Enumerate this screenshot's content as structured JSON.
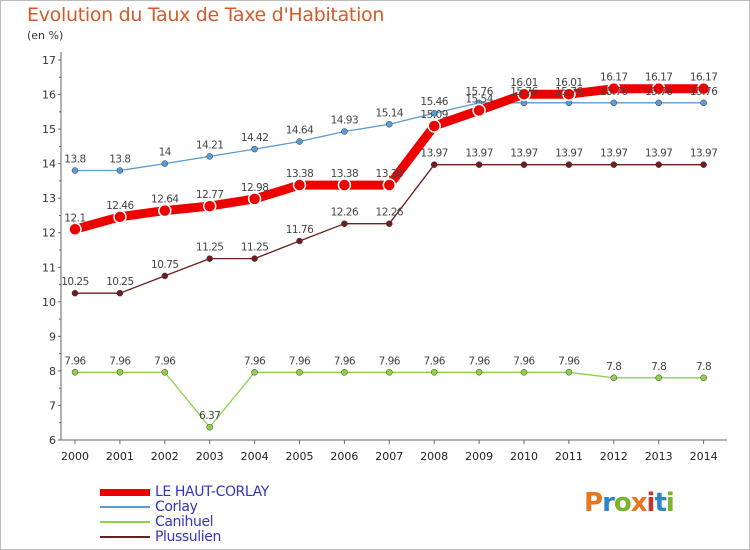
{
  "title": "Evolution du Taux de Taxe d'Habitation",
  "unit_label": "(en %)",
  "logo_text": "Proxiti",
  "logo_colors": [
    "#e8761e",
    "#2e86c8",
    "#7ab32e",
    "#e8761e",
    "#c0392b",
    "#2e86c8",
    "#7ab32e"
  ],
  "chart_data": {
    "type": "line",
    "x": [
      "2000",
      "2001",
      "2002",
      "2003",
      "2004",
      "2005",
      "2006",
      "2007",
      "2008",
      "2009",
      "2010",
      "2011",
      "2012",
      "2013",
      "2014"
    ],
    "ylim": [
      6,
      17
    ],
    "yticks": [
      "6",
      "7",
      "8",
      "9",
      "10",
      "11",
      "12",
      "13",
      "14",
      "15",
      "16",
      "17"
    ],
    "grid": false,
    "legend_placement": "bottom-left",
    "series": [
      {
        "name": "LE HAUT-CORLAY",
        "color": "#ee0000",
        "values": [
          12.1,
          12.46,
          12.64,
          12.77,
          12.98,
          13.38,
          13.38,
          13.38,
          15.09,
          15.54,
          16.01,
          16.01,
          16.17,
          16.17,
          16.17
        ],
        "labels": [
          "12.1",
          "12.46",
          "12.64",
          "12.77",
          "12.98",
          "13.38",
          "13.38",
          "13.38",
          "15.09",
          "15.54",
          "16.01",
          "16.01",
          "16.17",
          "16.17",
          "16.17"
        ]
      },
      {
        "name": "Corlay",
        "color": "#5b9bd5",
        "values": [
          13.8,
          13.8,
          14,
          14.21,
          14.42,
          14.64,
          14.93,
          15.14,
          15.46,
          15.76,
          15.76,
          15.76,
          15.76,
          15.76,
          15.76
        ],
        "labels": [
          "13.8",
          "13.8",
          "14",
          "14.21",
          "14.42",
          "14.64",
          "14.93",
          "15.14",
          "15.46",
          "15.76",
          "15.76",
          "15.76",
          "15.76",
          "15.76",
          "15.76"
        ]
      },
      {
        "name": "Canihuel",
        "color": "#8fd14f",
        "values": [
          7.96,
          7.96,
          7.96,
          6.37,
          7.96,
          7.96,
          7.96,
          7.96,
          7.96,
          7.96,
          7.96,
          7.96,
          7.8,
          7.8,
          7.8
        ],
        "labels": [
          "7.96",
          "7.96",
          "7.96",
          "6.37",
          "7.96",
          "7.96",
          "7.96",
          "7.96",
          "7.96",
          "7.96",
          "7.96",
          "7.96",
          "7.8",
          "7.8",
          "7.8"
        ]
      },
      {
        "name": "Plussulien",
        "color": "#6b1f1f",
        "values": [
          10.25,
          10.25,
          10.75,
          11.25,
          11.25,
          11.76,
          12.26,
          12.26,
          13.97,
          13.97,
          13.97,
          13.97,
          13.97,
          13.97,
          13.97
        ],
        "labels": [
          "10.25",
          "10.25",
          "10.75",
          "11.25",
          "11.25",
          "11.76",
          "12.26",
          "12.26",
          "13.97",
          "13.97",
          "13.97",
          "13.97",
          "13.97",
          "13.97",
          "13.97"
        ]
      }
    ]
  }
}
